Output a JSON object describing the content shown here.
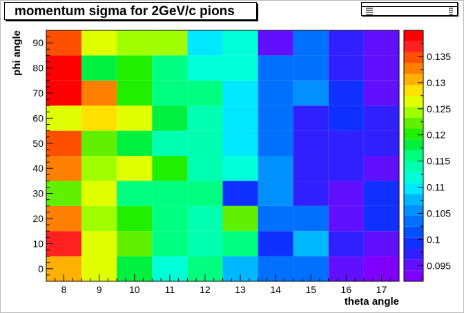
{
  "title": "momentum sigma for 2GeV/c pions",
  "chart_data": {
    "type": "heatmap",
    "title": "momentum sigma for 2GeV/c pions",
    "xlabel": "theta angle",
    "ylabel": "phi angle",
    "x_ticks": [
      "8",
      "9",
      "10",
      "11",
      "12",
      "13",
      "14",
      "15",
      "16",
      "17"
    ],
    "y_ticks": [
      "0",
      "10",
      "20",
      "30",
      "40",
      "50",
      "60",
      "70",
      "80",
      "90"
    ],
    "xlim": [
      7.5,
      17.5
    ],
    "ylim": [
      -5,
      95
    ],
    "zlim": [
      0.092,
      0.14
    ],
    "colorbar_ticks": [
      "0.095",
      "0.1",
      "0.105",
      "0.11",
      "0.115",
      "0.12",
      "0.125",
      "0.13",
      "0.135"
    ],
    "grid": false,
    "values": [
      [
        0.131,
        0.126,
        0.118,
        0.112,
        0.116,
        0.108,
        0.103,
        0.103,
        0.096,
        0.094
      ],
      [
        0.137,
        0.126,
        0.122,
        0.117,
        0.114,
        0.115,
        0.1,
        0.107,
        0.097,
        0.096
      ],
      [
        0.132,
        0.125,
        0.12,
        0.117,
        0.113,
        0.122,
        0.103,
        0.103,
        0.095,
        0.1
      ],
      [
        0.123,
        0.127,
        0.117,
        0.117,
        0.117,
        0.099,
        0.106,
        0.098,
        0.095,
        0.1
      ],
      [
        0.132,
        0.125,
        0.126,
        0.12,
        0.113,
        0.111,
        0.106,
        0.098,
        0.098,
        0.095
      ],
      [
        0.135,
        0.122,
        0.118,
        0.113,
        0.113,
        0.109,
        0.104,
        0.098,
        0.098,
        0.098
      ],
      [
        0.126,
        0.128,
        0.126,
        0.118,
        0.113,
        0.109,
        0.104,
        0.098,
        0.1,
        0.098
      ],
      [
        0.138,
        0.132,
        0.121,
        0.117,
        0.115,
        0.109,
        0.104,
        0.106,
        0.1,
        0.095
      ],
      [
        0.138,
        0.118,
        0.121,
        0.116,
        0.111,
        0.111,
        0.104,
        0.104,
        0.098,
        0.095
      ],
      [
        0.135,
        0.126,
        0.124,
        0.124,
        0.109,
        0.112,
        0.096,
        0.104,
        0.098,
        0.095
      ]
    ],
    "palette": [
      "#8000ff",
      "#6010ff",
      "#3020ff",
      "#1030ff",
      "#0050ff",
      "#0070ff",
      "#0090ff",
      "#00b8ff",
      "#00e8ff",
      "#00ffd8",
      "#00ffb0",
      "#00ff80",
      "#00f040",
      "#20f000",
      "#60f000",
      "#a0ff00",
      "#e0ff00",
      "#ffe000",
      "#ffb000",
      "#ff8000",
      "#ff5000",
      "#ff2020",
      "#ff0000"
    ]
  }
}
